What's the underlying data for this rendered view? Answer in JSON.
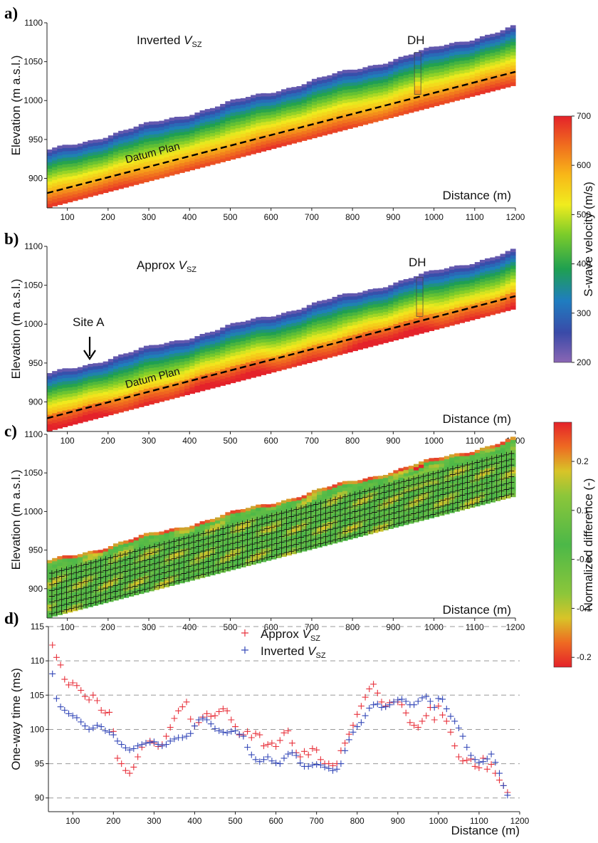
{
  "panels": {
    "a": {
      "label": "a)",
      "title": "Inverted",
      "title_symbol": "V",
      "title_sub": "SZ",
      "dh_label": "DH",
      "datum_label": "Datum Plan"
    },
    "b": {
      "label": "b)",
      "title": "Approx",
      "title_symbol": "V",
      "title_sub": "SZ",
      "dh_label": "DH",
      "datum_label": "Datum Plan",
      "site_label": "Site A"
    },
    "c": {
      "label": "c)"
    },
    "d": {
      "label": "d)"
    }
  },
  "axes": {
    "elevation_label": "Elevation (m a.s.l.)",
    "distance_label": "Distance (m)",
    "time_label": "One-way time (ms)"
  },
  "colorbars": {
    "velocity": {
      "label": "S-wave velocity (m/s)",
      "ticks": [
        "700",
        "600",
        "500",
        "400",
        "300",
        "200"
      ],
      "range": [
        200,
        700
      ]
    },
    "difference": {
      "label": "Normalized difference (-)",
      "ticks": [
        "0.2",
        "0.1",
        "-0.0",
        "-0.1",
        "-0.2"
      ],
      "range": [
        -0.22,
        0.28
      ]
    }
  },
  "chart_data": [
    {
      "type": "heatmap",
      "panel": "a",
      "title": "Inverted VSZ",
      "xlabel": "Distance (m)",
      "ylabel": "Elevation (m a.s.l.)",
      "xlim": [
        50,
        1200
      ],
      "ylim": [
        862,
        1100
      ],
      "xticks": [
        "100",
        "200",
        "300",
        "400",
        "500",
        "600",
        "700",
        "800",
        "900",
        "1000",
        "1100",
        "1200"
      ],
      "yticks": [
        "900",
        "950",
        "1000",
        "1050",
        "1100"
      ],
      "surface_elevation": {
        "x": [
          50,
          1200
        ],
        "y": [
          935,
          1095
        ]
      },
      "bottom_elevation": {
        "x": [
          50,
          1200
        ],
        "y": [
          862,
          1020
        ]
      },
      "datum_plan": {
        "x": [
          50,
          1200
        ],
        "y": [
          881,
          1037
        ]
      },
      "downhole": {
        "distance": 960,
        "top": 1062,
        "bottom": 1008
      },
      "colorscale": "S-wave velocity (m/s)"
    },
    {
      "type": "heatmap",
      "panel": "b",
      "title": "Approx VSZ",
      "xlabel": "Distance (m)",
      "ylabel": "Elevation (m a.s.l.)",
      "xlim": [
        50,
        1200
      ],
      "ylim": [
        862,
        1100
      ],
      "xticks": [
        "100",
        "200",
        "300",
        "400",
        "500",
        "600",
        "700",
        "800",
        "900",
        "1000",
        "1100",
        "1200"
      ],
      "yticks": [
        "900",
        "950",
        "1000",
        "1050",
        "1100"
      ],
      "surface_elevation": {
        "x": [
          50,
          1200
        ],
        "y": [
          935,
          1095
        ]
      },
      "bottom_elevation": {
        "x": [
          50,
          1200
        ],
        "y": [
          862,
          1020
        ]
      },
      "datum_plan": {
        "x": [
          50,
          1200
        ],
        "y": [
          879,
          1036
        ]
      },
      "downhole": {
        "distance": 965,
        "top": 1060,
        "bottom": 1010
      },
      "site_a_distance": 140,
      "colorscale": "S-wave velocity (m/s)"
    },
    {
      "type": "heatmap",
      "panel": "c",
      "xlabel": "Distance (m)",
      "ylabel": "Elevation (m a.s.l.)",
      "xlim": [
        50,
        1200
      ],
      "ylim": [
        862,
        1100
      ],
      "xticks": [
        "100",
        "200",
        "300",
        "400",
        "500",
        "600",
        "700",
        "800",
        "900",
        "1000",
        "1100",
        "1200"
      ],
      "yticks": [
        "900",
        "950",
        "1000",
        "1050",
        "1100"
      ],
      "surface_elevation": {
        "x": [
          50,
          1200
        ],
        "y": [
          935,
          1095
        ]
      },
      "bottom_elevation": {
        "x": [
          50,
          1200
        ],
        "y": [
          862,
          1020
        ]
      },
      "colorscale": "Normalized difference (-)",
      "markers": "+"
    },
    {
      "type": "scatter",
      "panel": "d",
      "xlabel": "Distance (m)",
      "ylabel": "One-way time (ms)",
      "xlim": [
        40,
        1200
      ],
      "ylim": [
        88,
        115
      ],
      "xticks": [
        "100",
        "200",
        "300",
        "400",
        "500",
        "600",
        "700",
        "800",
        "900",
        "1000",
        "1100",
        "1200"
      ],
      "yticks": [
        "115",
        "110",
        "105",
        "100",
        "95",
        "90"
      ],
      "grid": "horizontal dashed",
      "legend": "top-center",
      "x": [
        50,
        60,
        70,
        80,
        90,
        100,
        110,
        120,
        130,
        140,
        150,
        160,
        170,
        180,
        190,
        200,
        210,
        220,
        230,
        240,
        250,
        260,
        270,
        280,
        290,
        300,
        310,
        320,
        330,
        340,
        350,
        360,
        370,
        380,
        390,
        400,
        410,
        420,
        430,
        440,
        450,
        460,
        470,
        480,
        490,
        500,
        510,
        520,
        530,
        540,
        550,
        560,
        570,
        580,
        590,
        600,
        610,
        620,
        630,
        640,
        650,
        660,
        670,
        680,
        690,
        700,
        710,
        720,
        730,
        740,
        750,
        760,
        770,
        780,
        790,
        800,
        810,
        820,
        830,
        840,
        850,
        860,
        870,
        880,
        890,
        900,
        910,
        920,
        930,
        940,
        950,
        960,
        970,
        980,
        990,
        1000,
        1010,
        1020,
        1030,
        1040,
        1050,
        1060,
        1070,
        1080,
        1090,
        1100,
        1110,
        1120,
        1130,
        1140,
        1150,
        1160,
        1170
      ],
      "series": [
        {
          "name": "Approx VSZ",
          "color": "#e8323c",
          "symbol": "+",
          "values": [
            112.3,
            110.5,
            109.4,
            107.3,
            106.5,
            106.8,
            106.4,
            105.7,
            104.8,
            104.3,
            105.0,
            104.2,
            102.8,
            102.4,
            102.5,
            99.7,
            95.8,
            95.0,
            94.0,
            93.6,
            94.5,
            96.0,
            97.4,
            98.0,
            98.3,
            98.0,
            97.5,
            97.8,
            99.0,
            100.3,
            101.6,
            102.7,
            103.3,
            104.0,
            101.5,
            100.5,
            101.0,
            101.8,
            102.3,
            101.9,
            102.0,
            102.6,
            103.0,
            102.7,
            101.4,
            100.4,
            99.2,
            99.2,
            99.7,
            98.8,
            99.4,
            99.2,
            97.6,
            97.8,
            98.0,
            97.5,
            98.4,
            99.5,
            99.8,
            98.0,
            96.6,
            96.0,
            96.8,
            96.3,
            97.2,
            97.0,
            95.6,
            95.0,
            95.0,
            94.7,
            95.0,
            96.9,
            98.0,
            99.3,
            100.6,
            102.2,
            103.4,
            104.7,
            105.9,
            106.6,
            105.3,
            104.0,
            103.4,
            103.9,
            104.0,
            104.0,
            103.6,
            102.4,
            101.0,
            100.6,
            100.3,
            101.2,
            102.0,
            103.2,
            101.4,
            103.4,
            102.1,
            101.2,
            99.6,
            97.6,
            96.0,
            95.4,
            95.5,
            95.7,
            94.6,
            94.4,
            95.8,
            94.2,
            94.9,
            93.6,
            92.6,
            91.8,
            90.8
          ]
        },
        {
          "name": "Inverted VSZ",
          "color": "#3448b8",
          "symbol": "+",
          "values": [
            108.1,
            104.5,
            103.3,
            102.8,
            102.3,
            102.0,
            101.7,
            101.1,
            100.5,
            100.0,
            100.2,
            100.6,
            100.4,
            99.8,
            99.6,
            99.2,
            98.3,
            97.8,
            97.3,
            97.0,
            97.2,
            97.6,
            97.8,
            98.0,
            98.1,
            98.2,
            97.8,
            97.6,
            97.8,
            98.3,
            98.6,
            98.8,
            98.8,
            99.0,
            99.4,
            100.5,
            101.4,
            101.6,
            101.4,
            100.8,
            100.1,
            99.8,
            99.6,
            99.5,
            99.7,
            99.8,
            99.3,
            99.0,
            97.4,
            96.3,
            95.6,
            95.3,
            95.6,
            96.0,
            95.4,
            95.1,
            95.0,
            95.8,
            96.4,
            96.6,
            96.2,
            95.1,
            94.6,
            94.6,
            94.8,
            94.9,
            94.8,
            94.5,
            94.3,
            94.0,
            94.2,
            95.0,
            96.9,
            98.5,
            99.6,
            100.4,
            101.0,
            102.0,
            103.1,
            103.6,
            103.7,
            103.2,
            103.3,
            103.6,
            104.0,
            104.3,
            104.4,
            104.1,
            103.6,
            103.6,
            104.1,
            104.6,
            104.8,
            104.1,
            103.2,
            104.5,
            104.4,
            103.0,
            101.9,
            101.2,
            100.2,
            99.0,
            97.4,
            96.2,
            95.6,
            95.2,
            95.3,
            95.7,
            96.4,
            95.2,
            93.6,
            91.8,
            90.4
          ]
        }
      ]
    }
  ]
}
